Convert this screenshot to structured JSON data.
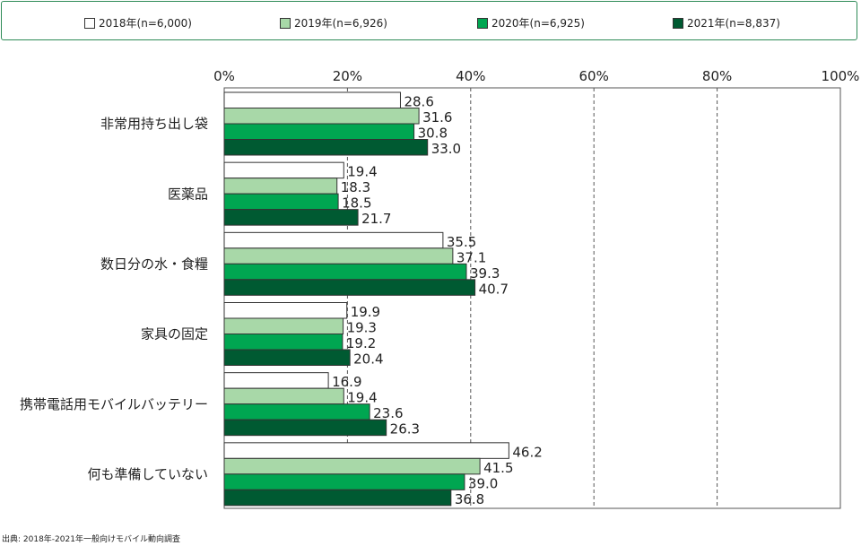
{
  "legend": {
    "items": [
      {
        "label": "2018年(n=6,000)",
        "color": "#ffffff"
      },
      {
        "label": "2019年(n=6,926)",
        "color": "#a8d8a8"
      },
      {
        "label": "2020年(n=6,925)",
        "color": "#00a651"
      },
      {
        "label": "2021年(n=8,837)",
        "color": "#005a32"
      }
    ]
  },
  "source": "出典: 2018年-2021年一般向けモバイル動向調査",
  "chart_data": {
    "type": "bar",
    "orientation": "horizontal",
    "categories": [
      "非常用持ち出し袋",
      "医薬品",
      "数日分の水・食糧",
      "家具の固定",
      "携帯電話用モバイルバッテリー",
      "何も準備していない"
    ],
    "series": [
      {
        "name": "2018年(n=6,000)",
        "color": "#ffffff",
        "values": [
          28.6,
          19.4,
          35.5,
          19.9,
          16.9,
          46.2
        ]
      },
      {
        "name": "2019年(n=6,926)",
        "color": "#a8d8a8",
        "values": [
          31.6,
          18.3,
          37.1,
          19.3,
          19.4,
          41.5
        ]
      },
      {
        "name": "2020年(n=6,925)",
        "color": "#00a651",
        "values": [
          30.8,
          18.5,
          39.3,
          19.2,
          23.6,
          39.0
        ]
      },
      {
        "name": "2021年(n=8,837)",
        "color": "#005a32",
        "values": [
          33.0,
          21.7,
          40.7,
          20.4,
          26.3,
          36.8
        ]
      }
    ],
    "xlim": [
      0,
      100
    ],
    "ticks": [
      "0%",
      "20%",
      "40%",
      "60%",
      "80%",
      "100%"
    ],
    "grid": "dashed vertical",
    "legend_position": "top"
  }
}
